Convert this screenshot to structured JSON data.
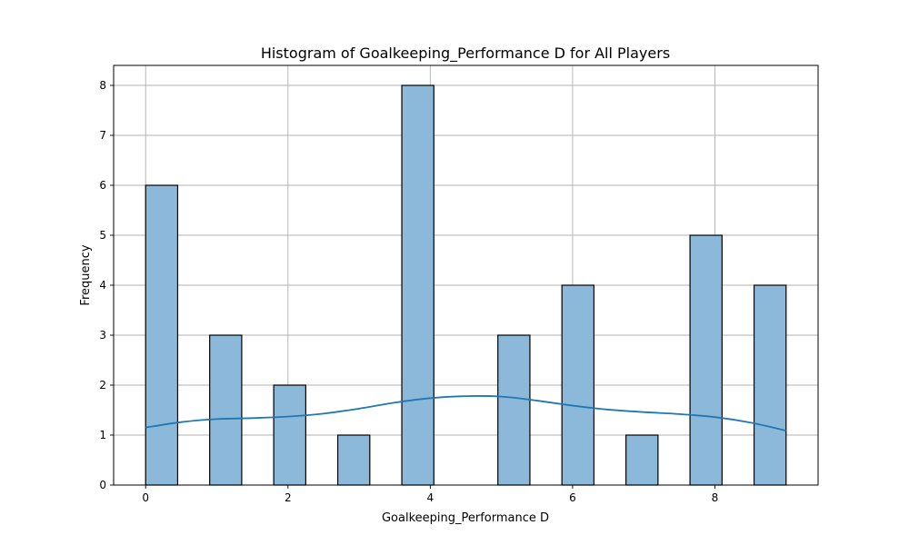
{
  "chart_data": {
    "type": "bar",
    "title": "Histogram of Goalkeeping_Performance D for All Players",
    "xlabel": "Goalkeeping_Performance D",
    "ylabel": "Frequency",
    "xlim": [
      -0.45,
      9.45
    ],
    "ylim": [
      0,
      8.4
    ],
    "xticks": [
      0,
      2,
      4,
      6,
      8
    ],
    "yticks": [
      0,
      1,
      2,
      3,
      4,
      5,
      6,
      7,
      8
    ],
    "grid": true,
    "bins": [
      {
        "x0": 0.0,
        "x1": 0.45,
        "count": 6
      },
      {
        "x0": 0.9,
        "x1": 1.35,
        "count": 3
      },
      {
        "x0": 1.8,
        "x1": 2.25,
        "count": 2
      },
      {
        "x0": 2.7,
        "x1": 3.15,
        "count": 1
      },
      {
        "x0": 3.6,
        "x1": 4.05,
        "count": 8
      },
      {
        "x0": 4.95,
        "x1": 5.4,
        "count": 3
      },
      {
        "x0": 5.85,
        "x1": 6.3,
        "count": 4
      },
      {
        "x0": 6.75,
        "x1": 7.2,
        "count": 1
      },
      {
        "x0": 7.65,
        "x1": 8.1,
        "count": 5
      },
      {
        "x0": 8.55,
        "x1": 9.0,
        "count": 4
      }
    ],
    "kde": {
      "x": [
        0,
        0.5,
        1,
        1.5,
        2,
        2.5,
        3,
        3.5,
        4,
        4.5,
        5,
        5.5,
        6,
        6.5,
        7,
        7.5,
        8,
        8.5,
        9
      ],
      "y": [
        1.15,
        1.26,
        1.32,
        1.34,
        1.37,
        1.43,
        1.53,
        1.65,
        1.74,
        1.78,
        1.77,
        1.69,
        1.59,
        1.51,
        1.46,
        1.42,
        1.36,
        1.25,
        1.09
      ]
    },
    "colors": {
      "bar_fill": "#8cb9d9",
      "kde_line": "#1f77b4"
    }
  }
}
